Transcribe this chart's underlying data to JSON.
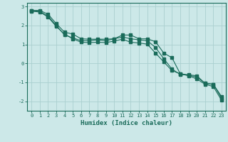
{
  "xlabel": "Humidex (Indice chaleur)",
  "bg_color": "#cce8e8",
  "grid_color": "#aacfcf",
  "line_color": "#1a6b5a",
  "x_ticks": [
    0,
    1,
    2,
    3,
    4,
    5,
    6,
    7,
    8,
    9,
    10,
    11,
    12,
    13,
    14,
    15,
    16,
    17,
    18,
    19,
    20,
    21,
    22,
    23
  ],
  "ylim": [
    -2.5,
    3.2
  ],
  "xlim": [
    -0.5,
    23.5
  ],
  "line1_x": [
    0,
    1,
    2,
    3,
    4,
    5,
    6,
    7,
    8,
    9,
    10,
    11,
    12,
    13,
    14,
    15,
    16,
    17,
    18,
    19,
    20,
    21,
    22,
    23
  ],
  "line1_y": [
    2.8,
    2.8,
    2.6,
    2.1,
    1.65,
    1.55,
    1.3,
    1.28,
    1.28,
    1.28,
    1.3,
    1.5,
    1.5,
    1.3,
    1.3,
    1.15,
    0.55,
    0.3,
    -0.55,
    -0.6,
    -0.65,
    -1.05,
    -1.1,
    -1.75
  ],
  "line2_x": [
    0,
    1,
    2,
    3,
    4,
    5,
    6,
    7,
    8,
    9,
    10,
    11,
    12,
    13,
    14,
    15,
    16,
    17,
    18,
    19,
    20,
    21,
    22,
    23
  ],
  "line2_y": [
    2.8,
    2.75,
    2.5,
    2.0,
    1.5,
    1.35,
    1.2,
    1.2,
    1.25,
    1.2,
    1.3,
    1.4,
    1.3,
    1.25,
    1.2,
    0.85,
    0.25,
    -0.3,
    -0.58,
    -0.62,
    -0.72,
    -1.05,
    -1.1,
    -1.85
  ],
  "line3_x": [
    0,
    1,
    2,
    3,
    4,
    5,
    6,
    7,
    8,
    9,
    10,
    11,
    12,
    13,
    14,
    15,
    16,
    17,
    18,
    19,
    20,
    21,
    22,
    23
  ],
  "line3_y": [
    2.75,
    2.72,
    2.45,
    1.95,
    1.55,
    1.3,
    1.12,
    1.1,
    1.12,
    1.1,
    1.18,
    1.28,
    1.12,
    1.08,
    1.02,
    0.55,
    0.08,
    -0.38,
    -0.55,
    -0.65,
    -0.82,
    -1.1,
    -1.22,
    -1.95
  ]
}
